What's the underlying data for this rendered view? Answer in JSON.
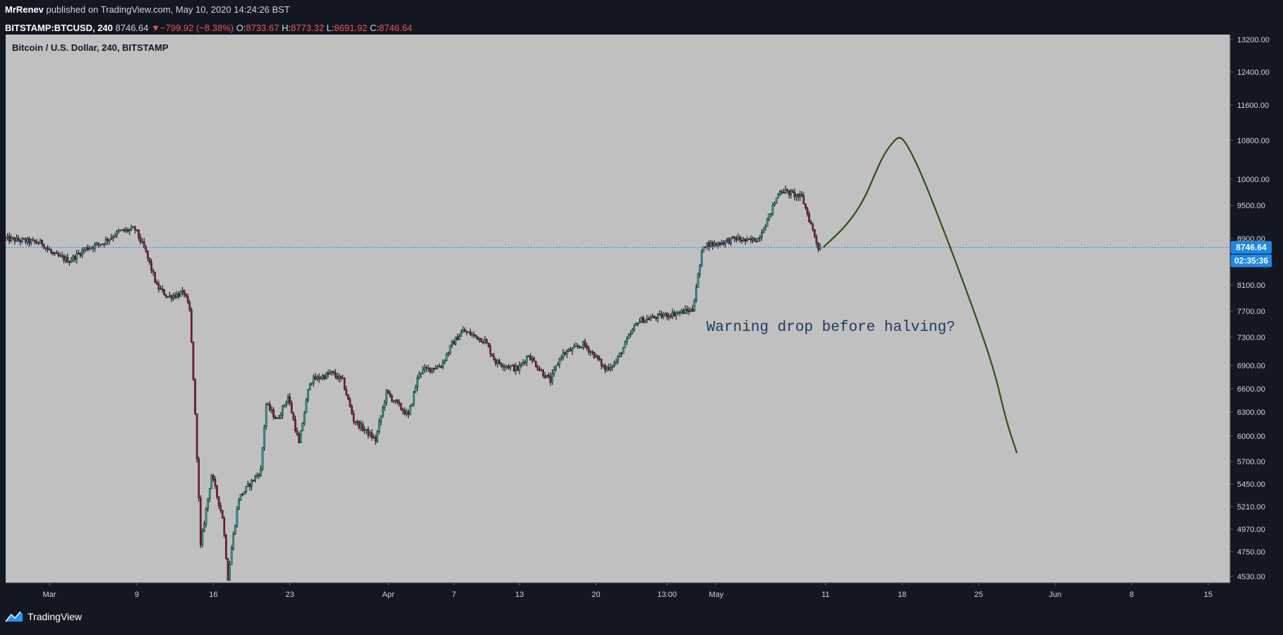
{
  "header": {
    "user": "MrRenev",
    "published_text": "published on TradingView.com, May 10, 2020 14:24:26 BST",
    "symbol": "BITSTAMP:BTCUSD, 240",
    "last": "8746.64",
    "change": "−799.92 (−8.38%)",
    "o_label": "O:",
    "o_value": "8733.67",
    "h_label": "H:",
    "h_value": "8773.32",
    "l_label": "L:",
    "l_value": "8691.92",
    "c_label": "C:",
    "c_value": "8746.64",
    "down_arrow_icon": "triangle-down-icon"
  },
  "chart_title": "Bitcoin / U.S. Dollar, 240, BITSTAMP",
  "annotation": "Warning drop before halving?",
  "price_badge": "8746.64",
  "timer_badge": "02:35:36",
  "footer_brand": "TradingView",
  "colors": {
    "background": "#131722",
    "plot_bg": "#c0c0c0",
    "axis_text": "#d1d4dc",
    "candle_up": "#26a69a",
    "candle_down": "#8b1a3a",
    "wick": "#000000",
    "projection": "#2e5010",
    "price_line": "#1e88e5",
    "annotation_text": "#1e3a5f",
    "badge": "#1e88e5"
  },
  "chart_data": {
    "type": "candlestick",
    "title": "Bitcoin / U.S. Dollar, 240, BITSTAMP",
    "y_ticks": [
      13200,
      12400,
      11600,
      10800,
      10000,
      9500,
      8900,
      8100,
      7700,
      7300,
      6900,
      6600,
      6300,
      6000,
      5700,
      5450,
      5210,
      4970,
      4750,
      4530
    ],
    "x_tick_labels": [
      "Mar",
      "9",
      "16",
      "23",
      "Apr",
      "7",
      "13",
      "20",
      "13:00",
      "May",
      "11",
      "18",
      "25",
      "Jun",
      "8",
      "15"
    ],
    "x_tick_days": [
      0,
      8,
      15,
      22,
      31,
      37,
      43,
      50,
      56.5,
      61,
      71,
      78,
      85,
      92,
      99,
      106
    ],
    "x_start_date": "2020-03-01",
    "waypoints": [
      [
        -4,
        8900
      ],
      [
        -0.5,
        8820
      ],
      [
        0.5,
        8620
      ],
      [
        2,
        8520
      ],
      [
        3.5,
        8730
      ],
      [
        5,
        8820
      ],
      [
        6.5,
        9020
      ],
      [
        8,
        9070
      ],
      [
        9,
        8660
      ],
      [
        10,
        8080
      ],
      [
        11,
        7920
      ],
      [
        12.5,
        7980
      ],
      [
        13,
        7700
      ],
      [
        14,
        4800
      ],
      [
        15,
        5550
      ],
      [
        16,
        5100
      ],
      [
        16.5,
        4520
      ],
      [
        17.5,
        5300
      ],
      [
        19.5,
        5600
      ],
      [
        20,
        6400
      ],
      [
        21,
        6200
      ],
      [
        22,
        6500
      ],
      [
        23,
        5900
      ],
      [
        24,
        6700
      ],
      [
        26,
        6800
      ],
      [
        27,
        6700
      ],
      [
        28,
        6200
      ],
      [
        30,
        5950
      ],
      [
        31,
        6550
      ],
      [
        33,
        6250
      ],
      [
        34,
        6820
      ],
      [
        36,
        6900
      ],
      [
        37,
        7200
      ],
      [
        38,
        7400
      ],
      [
        40,
        7250
      ],
      [
        41,
        6950
      ],
      [
        43,
        6850
      ],
      [
        44,
        7050
      ],
      [
        45,
        6850
      ],
      [
        46,
        6700
      ],
      [
        47,
        7050
      ],
      [
        49,
        7200
      ],
      [
        50,
        7050
      ],
      [
        51,
        6850
      ],
      [
        52,
        6950
      ],
      [
        54,
        7550
      ],
      [
        56,
        7620
      ],
      [
        59,
        7720
      ],
      [
        60,
        8800
      ],
      [
        61,
        8800
      ],
      [
        63,
        8900
      ],
      [
        64,
        8850
      ],
      [
        65,
        8900
      ],
      [
        66,
        9300
      ],
      [
        67,
        9800
      ],
      [
        69,
        9650
      ],
      [
        70.5,
        8746.64
      ]
    ],
    "projection": [
      [
        70.8,
        8750
      ],
      [
        73,
        9150
      ],
      [
        74.5,
        9600
      ],
      [
        75.5,
        10100
      ],
      [
        76.3,
        10500
      ],
      [
        77.2,
        10780
      ],
      [
        77.8,
        10900
      ],
      [
        78.5,
        10700
      ],
      [
        79.8,
        10100
      ],
      [
        82,
        8950
      ],
      [
        83.5,
        8200
      ],
      [
        85,
        7500
      ],
      [
        86.5,
        6800
      ],
      [
        87.5,
        6200
      ],
      [
        88.5,
        5800
      ]
    ],
    "ylim": [
      4450,
      13400
    ],
    "xlim": [
      -4,
      108
    ],
    "current_price": 8746.64,
    "annotation_point": [
      71,
      7400
    ]
  }
}
